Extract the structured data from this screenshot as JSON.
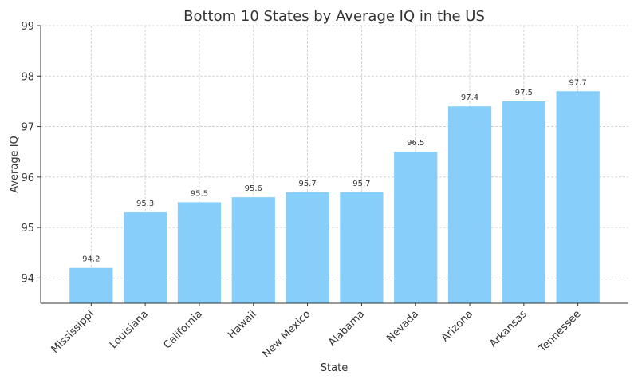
{
  "chart_data": {
    "type": "bar",
    "title": "Bottom 10 States by Average IQ in the US",
    "xlabel": "State",
    "ylabel": "Average IQ",
    "categories": [
      "Mississippi",
      "Louisiana",
      "California",
      "Hawaii",
      "New Mexico",
      "Alabama",
      "Nevada",
      "Arizona",
      "Arkansas",
      "Tennessee"
    ],
    "values": [
      94.2,
      95.3,
      95.5,
      95.6,
      95.7,
      95.7,
      96.5,
      97.4,
      97.5,
      97.7
    ],
    "data_labels": [
      "94.2",
      "95.3",
      "95.5",
      "95.6",
      "95.7",
      "95.7",
      "96.5",
      "97.4",
      "97.5",
      "97.7"
    ],
    "ylim": [
      93.5,
      99
    ],
    "yticks": [
      94,
      95,
      96,
      97,
      98,
      99
    ],
    "ytick_labels": [
      "94",
      "95",
      "96",
      "97",
      "98",
      "99"
    ],
    "grid": true,
    "bar_color": "#87cefa"
  }
}
